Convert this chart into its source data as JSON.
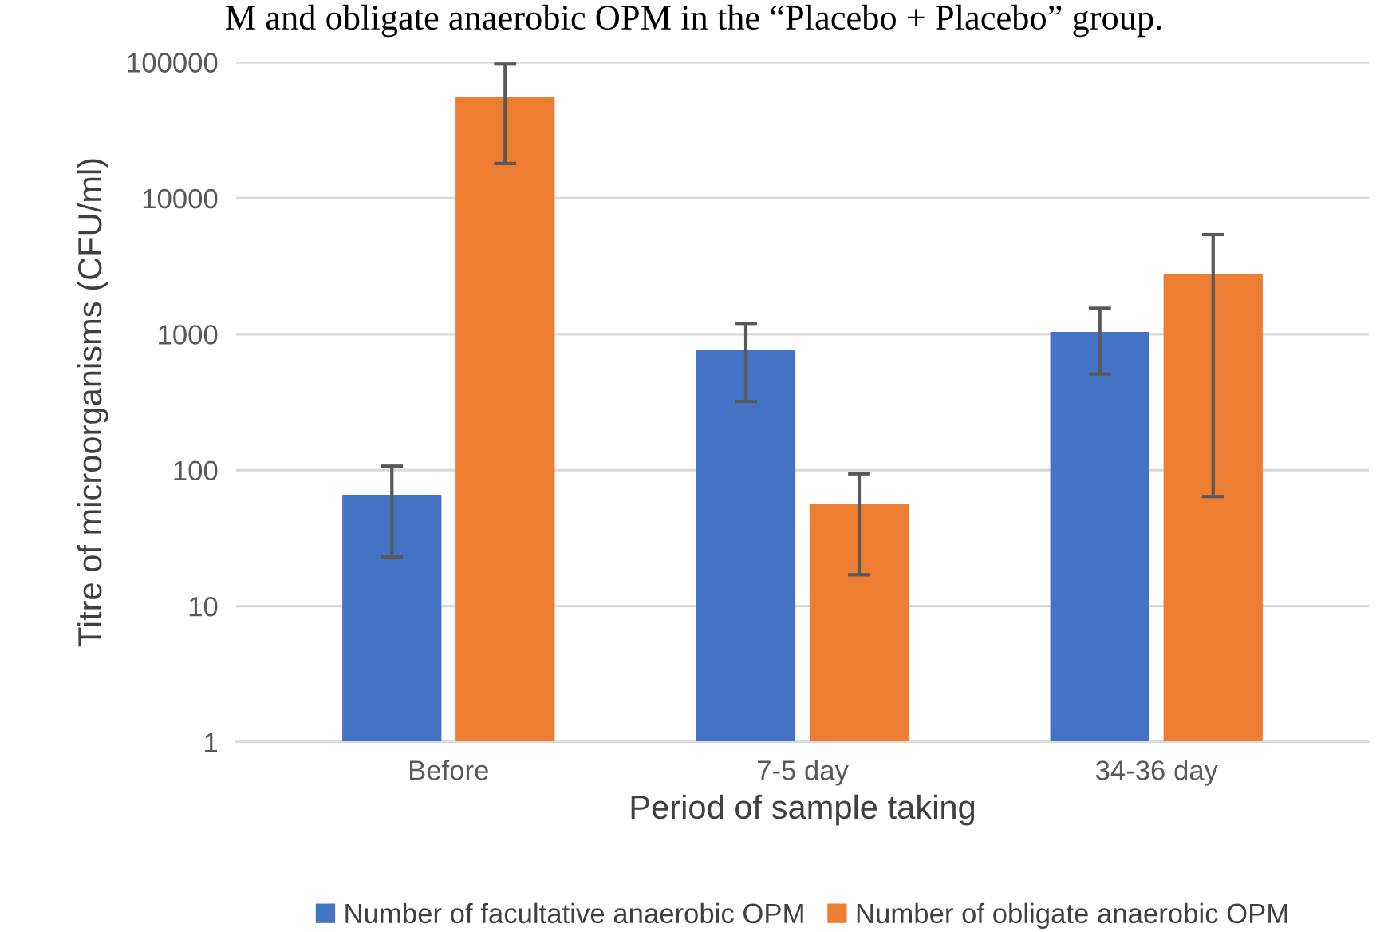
{
  "chart_data": {
    "type": "bar",
    "xlabel": "Period of sample taking",
    "ylabel": "Titre of microorganisms (CFU/ml)",
    "annotations": [
      "M and obligate anaerobic OPM in the “Placebo + Placebo” group."
    ],
    "categories": [
      "Before",
      "7-5 day",
      "34-36 day"
    ],
    "series": [
      {
        "name": "Number of facultative anaerobic OPM",
        "color": "#4472c4",
        "values": [
          66,
          770,
          1040
        ],
        "errors": [
          [
            23,
            107
          ],
          [
            320,
            1200
          ],
          [
            510,
            1550
          ]
        ]
      },
      {
        "name": "Number of obligate anaerobic OPM",
        "color": "#ed7d31",
        "values": [
          56000,
          56,
          2750
        ],
        "errors": [
          [
            18000,
            97000
          ],
          [
            17,
            94
          ],
          [
            64,
            5400
          ]
        ]
      }
    ],
    "log": "y",
    "ylim": [
      1,
      100000
    ],
    "yticks": [
      1,
      10,
      100,
      1000,
      10000,
      100000
    ],
    "grid": "y",
    "legend": "bottom"
  }
}
